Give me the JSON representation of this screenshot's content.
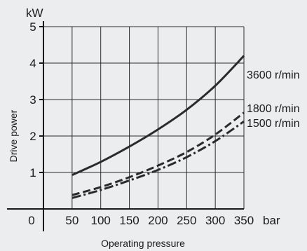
{
  "chart_data": {
    "type": "line",
    "xlabel": "Operating pressure",
    "ylabel": "Drive power",
    "x_unit": "bar",
    "y_unit": "kW",
    "xlim": [
      0,
      350
    ],
    "ylim": [
      0,
      5
    ],
    "x_ticks": [
      0,
      50,
      100,
      150,
      200,
      250,
      300,
      350
    ],
    "y_ticks": [
      1,
      2,
      3,
      4,
      5
    ],
    "grid": true,
    "series": [
      {
        "name": "3600 r/min",
        "style": "solid",
        "x": [
          50,
          100,
          150,
          200,
          250,
          300,
          350
        ],
        "y": [
          0.93,
          1.29,
          1.71,
          2.18,
          2.72,
          3.38,
          4.2
        ]
      },
      {
        "name": "1800 r/min",
        "style": "dashed",
        "x": [
          50,
          100,
          150,
          200,
          250,
          300,
          350
        ],
        "y": [
          0.38,
          0.6,
          0.87,
          1.19,
          1.56,
          2.04,
          2.64
        ]
      },
      {
        "name": "1500 r/min",
        "style": "dashdot",
        "x": [
          50,
          100,
          150,
          200,
          250,
          300,
          350
        ],
        "y": [
          0.3,
          0.52,
          0.78,
          1.07,
          1.42,
          1.86,
          2.4
        ]
      }
    ]
  }
}
